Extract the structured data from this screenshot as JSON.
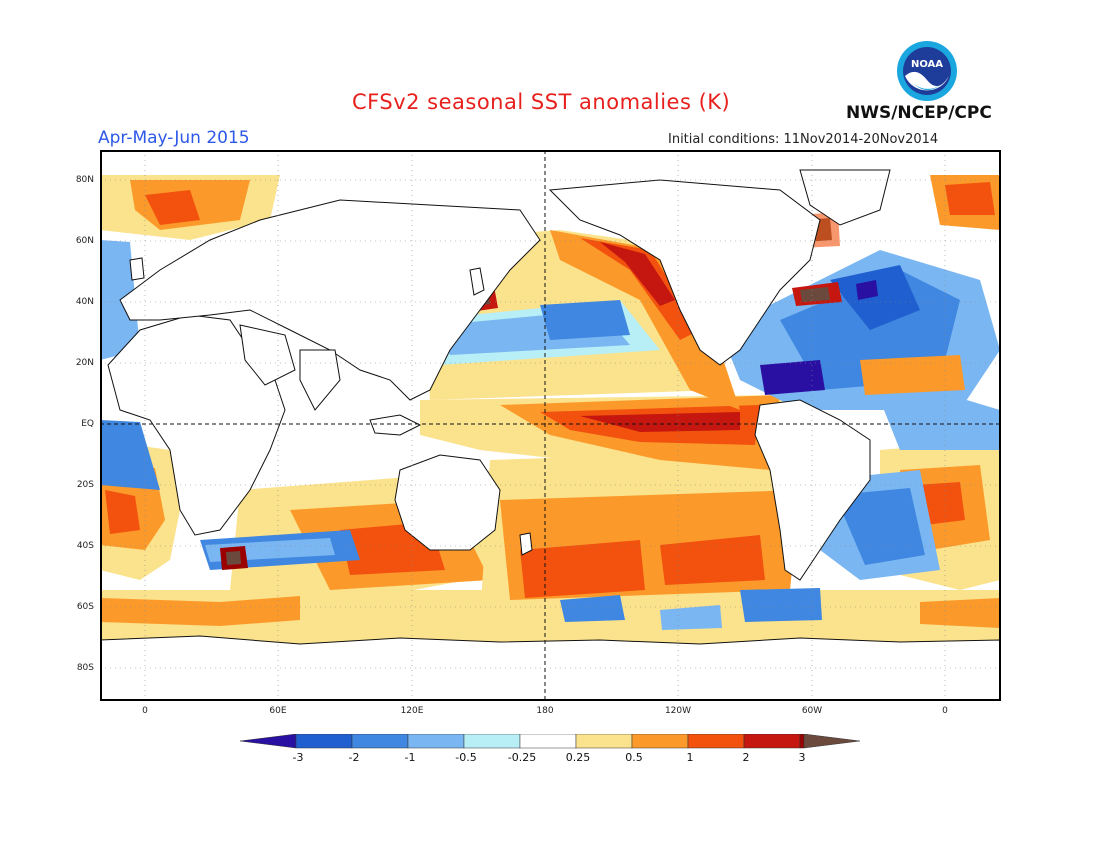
{
  "header": {
    "title": "CFSv2 seasonal SST anomalies (K)",
    "agency": "NWS/NCEP/CPC",
    "logo_text": "NOAA",
    "season": "Apr-May-Jun 2015",
    "initial_conditions": "Initial conditions: 11Nov2014-20Nov2014"
  },
  "axes": {
    "lat_labels": [
      "80N",
      "60N",
      "40N",
      "20N",
      "EQ",
      "20S",
      "40S",
      "60S",
      "80S"
    ],
    "lon_labels": [
      "0",
      "60E",
      "120E",
      "180",
      "120W",
      "60W",
      "0"
    ]
  },
  "colorbar": {
    "labels": [
      "-3",
      "-2",
      "-1",
      "-0.5",
      "-0.25",
      "0.25",
      "0.5",
      "1",
      "2",
      "3"
    ],
    "colors": [
      "#2a0fa3",
      "#1f5fcf",
      "#3f87e0",
      "#7ab6f2",
      "#b8eef5",
      "#ffffff",
      "#fbe28c",
      "#fb9a2a",
      "#f2520e",
      "#c5160f",
      "#9b0000",
      "#6b4a3d"
    ]
  },
  "colors": {
    "deep_blue": "#2a0fa3",
    "blue": "#3f87e0",
    "light_blue": "#7ab6f2",
    "pale_blue": "#b8eef5",
    "pale_yellow": "#fbe28c",
    "orange": "#fb9a2a",
    "red_orange": "#f2520e",
    "red": "#c5160f",
    "dark_red": "#9b0000",
    "brown": "#6b4a3d"
  }
}
